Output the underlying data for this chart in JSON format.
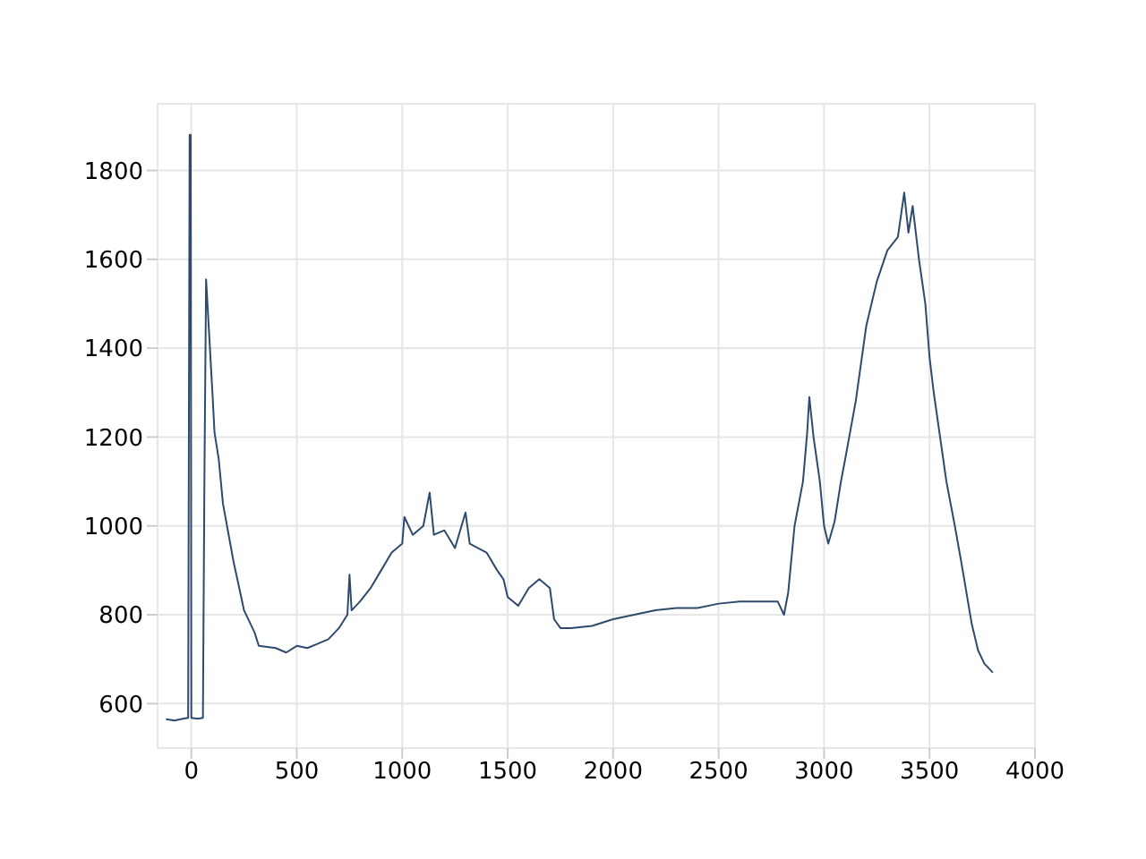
{
  "chart_data": {
    "type": "line",
    "x": [
      -120,
      -80,
      -40,
      -15,
      -8,
      -3,
      0,
      30,
      55,
      62,
      70,
      100,
      110,
      130,
      150,
      200,
      250,
      300,
      320,
      400,
      450,
      500,
      550,
      600,
      650,
      700,
      740,
      750,
      760,
      800,
      850,
      900,
      950,
      1000,
      1010,
      1050,
      1100,
      1130,
      1150,
      1200,
      1250,
      1300,
      1320,
      1400,
      1450,
      1480,
      1500,
      1550,
      1600,
      1650,
      1700,
      1720,
      1750,
      1800,
      1900,
      2000,
      2100,
      2200,
      2300,
      2400,
      2500,
      2600,
      2700,
      2780,
      2810,
      2830,
      2860,
      2900,
      2920,
      2930,
      2950,
      2980,
      3000,
      3020,
      3050,
      3080,
      3100,
      3150,
      3200,
      3250,
      3300,
      3350,
      3380,
      3400,
      3420,
      3450,
      3480,
      3500,
      3520,
      3550,
      3580,
      3620,
      3650,
      3700,
      3730,
      3760,
      3800
    ],
    "series": [
      {
        "color": "#2e4a6e",
        "values": [
          565,
          562,
          566,
          568,
          1880,
          1880,
          568,
          566,
          568,
          1100,
          1555,
          1300,
          1210,
          1150,
          1050,
          920,
          810,
          760,
          730,
          725,
          715,
          730,
          725,
          735,
          745,
          770,
          800,
          890,
          810,
          830,
          860,
          900,
          940,
          960,
          1020,
          980,
          1000,
          1075,
          980,
          990,
          950,
          1030,
          960,
          940,
          900,
          880,
          840,
          820,
          860,
          880,
          860,
          790,
          770,
          770,
          775,
          790,
          800,
          810,
          815,
          815,
          825,
          830,
          830,
          830,
          800,
          850,
          1000,
          1100,
          1210,
          1290,
          1200,
          1100,
          1000,
          960,
          1010,
          1100,
          1150,
          1280,
          1450,
          1550,
          1620,
          1650,
          1750,
          1660,
          1720,
          1600,
          1500,
          1380,
          1300,
          1200,
          1100,
          1000,
          920,
          780,
          720,
          690,
          670
        ]
      }
    ],
    "xlim": [
      -160,
      4000
    ],
    "xticks": [
      0,
      500,
      1000,
      1500,
      2000,
      2500,
      3000,
      3500,
      4000
    ],
    "ylim": [
      500,
      1950
    ],
    "yticks": [
      600,
      800,
      1000,
      1200,
      1400,
      1600,
      1800
    ],
    "grid": true
  }
}
